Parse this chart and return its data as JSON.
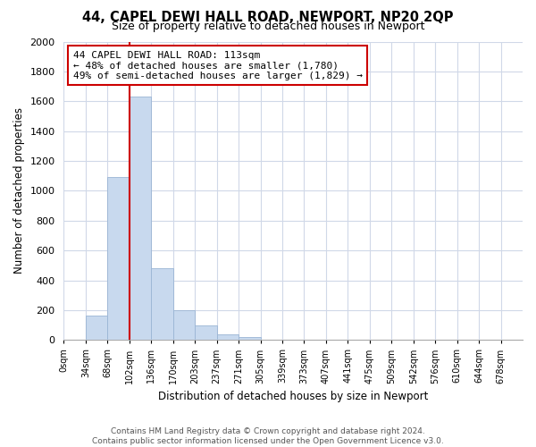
{
  "title": "44, CAPEL DEWI HALL ROAD, NEWPORT, NP20 2QP",
  "subtitle": "Size of property relative to detached houses in Newport",
  "xlabel": "Distribution of detached houses by size in Newport",
  "ylabel": "Number of detached properties",
  "bar_labels": [
    "0sqm",
    "34sqm",
    "68sqm",
    "102sqm",
    "136sqm",
    "170sqm",
    "203sqm",
    "237sqm",
    "271sqm",
    "305sqm",
    "339sqm",
    "373sqm",
    "407sqm",
    "441sqm",
    "475sqm",
    "509sqm",
    "542sqm",
    "576sqm",
    "610sqm",
    "644sqm",
    "678sqm"
  ],
  "bar_values": [
    0,
    165,
    1090,
    1630,
    480,
    200,
    100,
    40,
    20,
    0,
    0,
    0,
    0,
    0,
    0,
    0,
    0,
    0,
    0,
    0,
    0
  ],
  "bar_color": "#c8d9ee",
  "bar_edge_color": "#9ab5d4",
  "vline_color": "#cc0000",
  "annotation_line1": "44 CAPEL DEWI HALL ROAD: 113sqm",
  "annotation_line2": "← 48% of detached houses are smaller (1,780)",
  "annotation_line3": "49% of semi-detached houses are larger (1,829) →",
  "ylim": [
    0,
    2000
  ],
  "yticks": [
    0,
    200,
    400,
    600,
    800,
    1000,
    1200,
    1400,
    1600,
    1800,
    2000
  ],
  "footer_line1": "Contains HM Land Registry data © Crown copyright and database right 2024.",
  "footer_line2": "Contains public sector information licensed under the Open Government Licence v3.0.",
  "bg_color": "#ffffff",
  "grid_color": "#d0d8e8"
}
